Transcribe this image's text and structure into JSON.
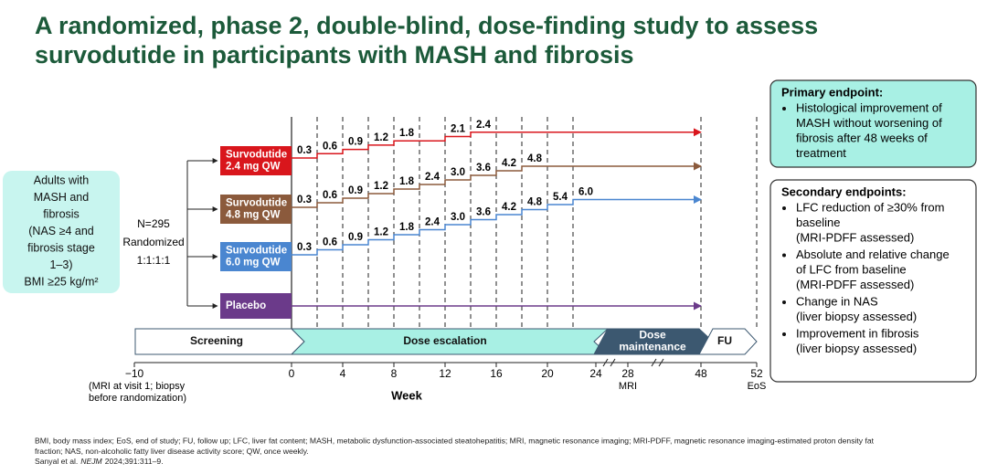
{
  "title": {
    "lines": [
      "A randomized, phase 2, double-blind, dose-finding study to assess",
      "survodutide in participants with MASH and fibrosis"
    ]
  },
  "population": {
    "lines": [
      "Adults with",
      "MASH and",
      "fibrosis",
      "(NAS ≥4 and",
      "fibrosis stage",
      "1–3)",
      "BMI ≥25 kg/m²"
    ]
  },
  "randomization": {
    "n": "N=295",
    "label": "Randomized",
    "ratio": "1:1:1:1"
  },
  "arms": [
    {
      "label": [
        "Survodutide",
        "2.4 mg QW"
      ],
      "doses": [
        "0.3",
        "0.6",
        "0.9",
        "1.2",
        "1.8",
        "2.1",
        "2.4"
      ]
    },
    {
      "label": [
        "Survodutide",
        "4.8 mg QW"
      ],
      "doses": [
        "0.3",
        "0.6",
        "0.9",
        "1.2",
        "1.8",
        "2.4",
        "3.0",
        "3.6",
        "4.2",
        "4.8"
      ]
    },
    {
      "label": [
        "Survodutide",
        "6.0 mg QW"
      ],
      "doses": [
        "0.3",
        "0.6",
        "0.9",
        "1.2",
        "1.8",
        "2.4",
        "3.0",
        "3.6",
        "4.2",
        "4.8",
        "5.4",
        "6.0"
      ]
    },
    {
      "label": [
        "Placebo"
      ]
    }
  ],
  "phases": [
    {
      "lines": [
        "Screening"
      ]
    },
    {
      "lines": [
        "Dose escalation"
      ]
    },
    {
      "lines": [
        "Dose",
        "maintenance"
      ]
    },
    {
      "lines": [
        "FU"
      ]
    }
  ],
  "timeline": {
    "ticks": [
      {
        "label": "−10"
      },
      {
        "label": "0"
      },
      {
        "label": "4"
      },
      {
        "label": "8"
      },
      {
        "label": "12"
      },
      {
        "label": "16"
      },
      {
        "label": "20"
      },
      {
        "label": "24"
      },
      {
        "label": "28",
        "note": "MRI"
      },
      {
        "label": "48"
      },
      {
        "label": "52",
        "note": "EoS"
      }
    ],
    "screening_note": [
      "(MRI at visit 1; biopsy",
      "before randomization)"
    ],
    "axis_label": "Week"
  },
  "primary_endpoint": {
    "title": "Primary endpoint:",
    "bullets": [
      [
        "Histological improvement of",
        "MASH without worsening of",
        "fibrosis after 48 weeks of",
        "treatment"
      ]
    ]
  },
  "secondary_endpoints": {
    "title": "Secondary endpoints:",
    "bullets": [
      [
        "LFC reduction of ≥30% from",
        "baseline",
        "(MRI-PDFF assessed)"
      ],
      [
        "Absolute and relative change",
        "of LFC from baseline",
        "(MRI-PDFF assessed)"
      ],
      [
        "Change in NAS",
        "(liver biopsy assessed)"
      ],
      [
        "Improvement in fibrosis",
        "(liver biopsy assessed)"
      ]
    ]
  },
  "footnote": {
    "lines": [
      "BMI, body mass index; EoS, end of study; FU, follow up; LFC, liver fat content; MASH, metabolic dysfunction-associated steatohepatitis; MRI, magnetic resonance imaging; MRI-PDFF, magnetic resonance imaging-estimated proton density fat",
      "fraction; NAS, non-alcoholic fatty liver disease activity score; QW, once weekly."
    ],
    "reference": {
      "authors": "Sanyal et al.",
      "journal": "NEJM",
      "citation": "2024;391:311–9."
    }
  }
}
